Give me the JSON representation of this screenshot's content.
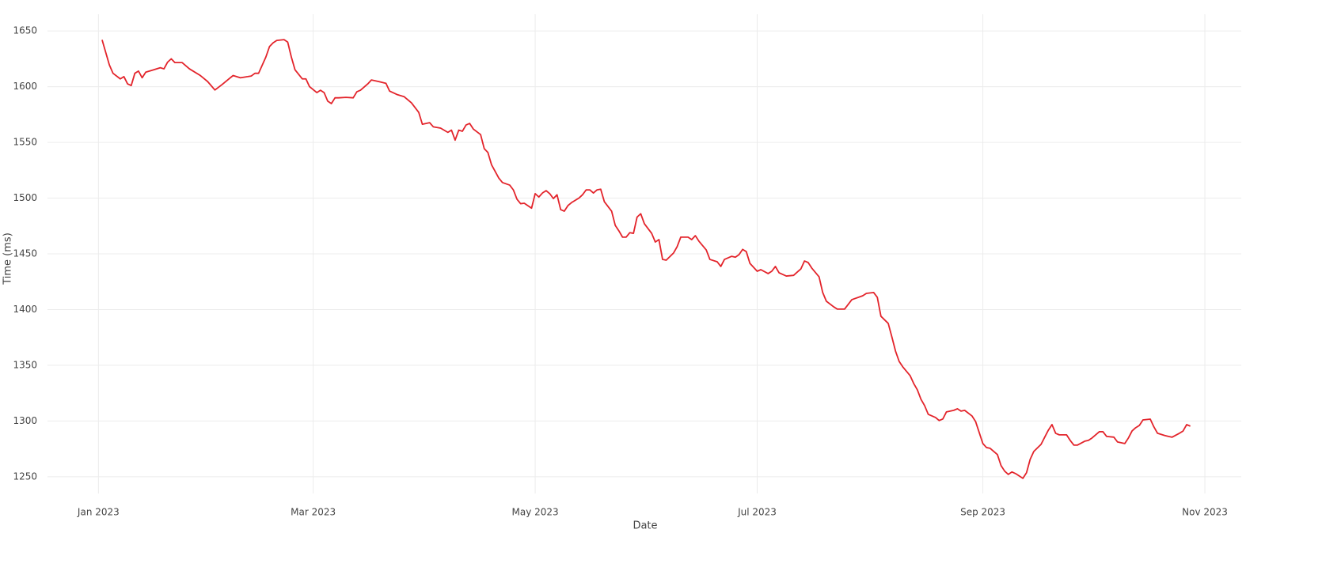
{
  "chart_data": {
    "type": "line",
    "x_label": "Date",
    "y_label": "Time (ms)",
    "color": "#e3242b",
    "grid": true,
    "xlim": [
      "2022-12-18",
      "2023-11-11"
    ],
    "xticks": [
      {
        "value": "2023-01-01",
        "label": "Jan 2023"
      },
      {
        "value": "2023-03-01",
        "label": "Mar 2023"
      },
      {
        "value": "2023-05-01",
        "label": "May 2023"
      },
      {
        "value": "2023-07-01",
        "label": "Jul 2023"
      },
      {
        "value": "2023-09-01",
        "label": "Sep 2023"
      },
      {
        "value": "2023-11-01",
        "label": "Nov 2023"
      }
    ],
    "ylim": [
      1235,
      1665
    ],
    "yticks": [
      1250,
      1300,
      1350,
      1400,
      1450,
      1500,
      1550,
      1600,
      1650
    ],
    "x": [
      "2023-01-02",
      "2023-01-04",
      "2023-01-05",
      "2023-01-07",
      "2023-01-08",
      "2023-01-09",
      "2023-01-10",
      "2023-01-11",
      "2023-01-12",
      "2023-01-13",
      "2023-01-14",
      "2023-01-16",
      "2023-01-18",
      "2023-01-19",
      "2023-01-20",
      "2023-01-21",
      "2023-01-22",
      "2023-01-24",
      "2023-01-26",
      "2023-01-29",
      "2023-01-31",
      "2023-02-02",
      "2023-02-04",
      "2023-02-06",
      "2023-02-07",
      "2023-02-09",
      "2023-02-11",
      "2023-02-12",
      "2023-02-13",
      "2023-02-14",
      "2023-02-16",
      "2023-02-17",
      "2023-02-18",
      "2023-02-19",
      "2023-02-21",
      "2023-02-22",
      "2023-02-23",
      "2023-02-24",
      "2023-02-26",
      "2023-02-27",
      "2023-02-28",
      "2023-03-02",
      "2023-03-03",
      "2023-03-04",
      "2023-03-05",
      "2023-03-06",
      "2023-03-07",
      "2023-03-08",
      "2023-03-10",
      "2023-03-12",
      "2023-03-13",
      "2023-03-14",
      "2023-03-16",
      "2023-03-17",
      "2023-03-19",
      "2023-03-21",
      "2023-03-22",
      "2023-03-24",
      "2023-03-26",
      "2023-03-28",
      "2023-03-30",
      "2023-03-31",
      "2023-04-02",
      "2023-04-03",
      "2023-04-05",
      "2023-04-07",
      "2023-04-08",
      "2023-04-09",
      "2023-04-10",
      "2023-04-11",
      "2023-04-12",
      "2023-04-13",
      "2023-04-14",
      "2023-04-16",
      "2023-04-17",
      "2023-04-18",
      "2023-04-19",
      "2023-04-21",
      "2023-04-22",
      "2023-04-24",
      "2023-04-25",
      "2023-04-26",
      "2023-04-27",
      "2023-04-28",
      "2023-04-30",
      "2023-05-01",
      "2023-05-02",
      "2023-05-03",
      "2023-05-04",
      "2023-05-05",
      "2023-05-06",
      "2023-05-07",
      "2023-05-08",
      "2023-05-09",
      "2023-05-10",
      "2023-05-11",
      "2023-05-13",
      "2023-05-14",
      "2023-05-15",
      "2023-05-16",
      "2023-05-17",
      "2023-05-18",
      "2023-05-19",
      "2023-05-20",
      "2023-05-22",
      "2023-05-23",
      "2023-05-24",
      "2023-05-25",
      "2023-05-26",
      "2023-05-27",
      "2023-05-28",
      "2023-05-29",
      "2023-05-30",
      "2023-05-31",
      "2023-06-02",
      "2023-06-03",
      "2023-06-04",
      "2023-06-05",
      "2023-06-06",
      "2023-06-08",
      "2023-06-09",
      "2023-06-10",
      "2023-06-12",
      "2023-06-13",
      "2023-06-14",
      "2023-06-15",
      "2023-06-17",
      "2023-06-18",
      "2023-06-20",
      "2023-06-21",
      "2023-06-22",
      "2023-06-24",
      "2023-06-25",
      "2023-06-26",
      "2023-06-27",
      "2023-06-28",
      "2023-06-29",
      "2023-07-01",
      "2023-07-02",
      "2023-07-04",
      "2023-07-05",
      "2023-07-06",
      "2023-07-07",
      "2023-07-09",
      "2023-07-11",
      "2023-07-12",
      "2023-07-13",
      "2023-07-14",
      "2023-07-15",
      "2023-07-16",
      "2023-07-18",
      "2023-07-19",
      "2023-07-20",
      "2023-07-22",
      "2023-07-23",
      "2023-07-24",
      "2023-07-25",
      "2023-07-26",
      "2023-07-27",
      "2023-07-30",
      "2023-07-31",
      "2023-08-02",
      "2023-08-03",
      "2023-08-04",
      "2023-08-06",
      "2023-08-07",
      "2023-08-08",
      "2023-08-09",
      "2023-08-10",
      "2023-08-12",
      "2023-08-13",
      "2023-08-14",
      "2023-08-15",
      "2023-08-16",
      "2023-08-17",
      "2023-08-19",
      "2023-08-20",
      "2023-08-21",
      "2023-08-22",
      "2023-08-24",
      "2023-08-25",
      "2023-08-26",
      "2023-08-27",
      "2023-08-29",
      "2023-08-30",
      "2023-08-31",
      "2023-09-01",
      "2023-09-02",
      "2023-09-03",
      "2023-09-05",
      "2023-09-06",
      "2023-09-07",
      "2023-09-08",
      "2023-09-09",
      "2023-09-10",
      "2023-09-12",
      "2023-09-13",
      "2023-09-14",
      "2023-09-15",
      "2023-09-17",
      "2023-09-18",
      "2023-09-19",
      "2023-09-20",
      "2023-09-21",
      "2023-09-22",
      "2023-09-24",
      "2023-09-25",
      "2023-09-26",
      "2023-09-27",
      "2023-09-29",
      "2023-09-30",
      "2023-10-01",
      "2023-10-03",
      "2023-10-04",
      "2023-10-05",
      "2023-10-07",
      "2023-10-08",
      "2023-10-10",
      "2023-10-11",
      "2023-10-12",
      "2023-10-13",
      "2023-10-14",
      "2023-10-15",
      "2023-10-17",
      "2023-10-18",
      "2023-10-19",
      "2023-10-21",
      "2023-10-22",
      "2023-10-23",
      "2023-10-25",
      "2023-10-26",
      "2023-10-27",
      "2023-10-28"
    ],
    "values": [
      1642,
      1619.5,
      1612,
      1607,
      1609,
      1602.5,
      1601,
      1612,
      1614,
      1608,
      1613,
      1615,
      1617,
      1616,
      1622,
      1625,
      1621.6,
      1621.6,
      1616,
      1610,
      1604.6,
      1597,
      1602,
      1607.4,
      1610,
      1608,
      1609,
      1609.6,
      1612,
      1612,
      1626.6,
      1636,
      1639.4,
      1641.5,
      1642.2,
      1640,
      1626.6,
      1615.2,
      1607,
      1607,
      1600,
      1594.7,
      1596.8,
      1594.7,
      1587,
      1584.8,
      1590,
      1590,
      1590.4,
      1590,
      1595.4,
      1596.8,
      1602.5,
      1606,
      1604.6,
      1603,
      1596,
      1593,
      1591,
      1585.5,
      1577,
      1566.3,
      1567.7,
      1564,
      1562.8,
      1559,
      1561,
      1552,
      1561,
      1560,
      1565.6,
      1567,
      1562,
      1557,
      1544.4,
      1541,
      1530,
      1518,
      1514,
      1511.7,
      1507.4,
      1499,
      1495,
      1495.4,
      1491,
      1504,
      1501,
      1504.6,
      1506.7,
      1504,
      1499.6,
      1503,
      1489.7,
      1488.3,
      1493.3,
      1496,
      1500,
      1503,
      1507.4,
      1507.4,
      1504.6,
      1507.4,
      1508,
      1496.8,
      1488.3,
      1475.5,
      1470.6,
      1465,
      1465,
      1469,
      1468.4,
      1483,
      1486,
      1477,
      1468.4,
      1460.6,
      1462.8,
      1445,
      1444.3,
      1450.7,
      1456.4,
      1465,
      1465,
      1462.8,
      1466.3,
      1461.3,
      1453.5,
      1445,
      1442.9,
      1438.7,
      1445,
      1447.8,
      1447,
      1449.3,
      1454,
      1452,
      1441.5,
      1434.4,
      1435.8,
      1432.3,
      1434.4,
      1438.7,
      1433,
      1430.1,
      1430.7,
      1433.6,
      1436.5,
      1443.6,
      1442.2,
      1437.2,
      1429.4,
      1415.3,
      1407.5,
      1402.5,
      1400.4,
      1400.4,
      1400.4,
      1404.6,
      1408.9,
      1412.4,
      1414.5,
      1415.3,
      1411,
      1394,
      1387.6,
      1375.5,
      1362.8,
      1353.5,
      1348.6,
      1340.8,
      1333.7,
      1328,
      1319.5,
      1313.8,
      1306,
      1303.2,
      1300.4,
      1301.8,
      1308.2,
      1309.6,
      1311,
      1308.9,
      1309.6,
      1304.6,
      1299.6,
      1289.7,
      1279.8,
      1276.2,
      1275.5,
      1269.9,
      1260,
      1255,
      1252.1,
      1254.3,
      1252.8,
      1248.6,
      1253.6,
      1265.6,
      1272.7,
      1279.1,
      1285.5,
      1291.8,
      1296.8,
      1289,
      1287.6,
      1287.6,
      1282.6,
      1278.4,
      1278.4,
      1281.9,
      1282.6,
      1284.8,
      1290.4,
      1290.4,
      1286.2,
      1285.5,
      1281.2,
      1279.8,
      1284.8,
      1291.1,
      1294,
      1296,
      1301,
      1301.7,
      1294.7,
      1289,
      1287,
      1286.2,
      1285.5,
      1289,
      1291,
      1296.8,
      1295.4
    ]
  }
}
